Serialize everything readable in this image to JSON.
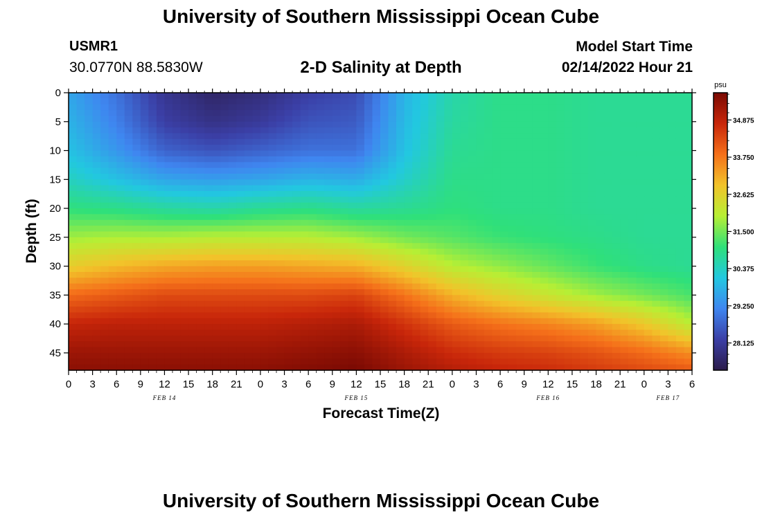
{
  "header": {
    "title": "University of Southern Mississippi Ocean Cube",
    "station_id": "USMR1",
    "station_coords": "30.0770N  88.5830W",
    "chart_title": "2-D Salinity at Depth",
    "start_label": "Model Start Time",
    "start_value": "02/14/2022 Hour 21"
  },
  "footer": {
    "title": "University of Southern Mississippi Ocean Cube"
  },
  "chart_data": {
    "type": "heatmap",
    "title": "2-D Salinity at Depth",
    "xlabel": "Forecast Time(Z)",
    "ylabel": "Depth (ft)",
    "x_ticks": [
      "0",
      "3",
      "6",
      "9",
      "12",
      "15",
      "18",
      "21",
      "0",
      "3",
      "6",
      "9",
      "12",
      "15",
      "18",
      "21",
      "0",
      "3",
      "6",
      "9",
      "12",
      "15",
      "18",
      "21",
      "0",
      "3",
      "6"
    ],
    "x_range_hours": [
      0,
      78
    ],
    "date_labels": [
      {
        "label": "FEB 14",
        "hour": 12
      },
      {
        "label": "FEB 15",
        "hour": 36
      },
      {
        "label": "FEB 16",
        "hour": 60
      },
      {
        "label": "FEB 17",
        "hour": 75
      }
    ],
    "y_ticks": [
      "0",
      "5",
      "10",
      "15",
      "20",
      "25",
      "30",
      "35",
      "40",
      "45"
    ],
    "y_range_ft": [
      0,
      48
    ],
    "y_reversed": true,
    "colorbar": {
      "unit": "psu",
      "range": [
        27.3,
        35.7
      ],
      "tick_labels": [
        "34.875",
        "33.750",
        "32.625",
        "31.500",
        "30.375",
        "29.250",
        "28.125"
      ],
      "colors": [
        "#2b1b4a",
        "#3b3fa6",
        "#3f86f0",
        "#22c8e0",
        "#2fe07a",
        "#b7ef34",
        "#f2c32a",
        "#f5701a",
        "#c8260a",
        "#7a0a03"
      ]
    },
    "description_grid": {
      "depth_ft": [
        0,
        5,
        10,
        15,
        20,
        25,
        30,
        35,
        40,
        45,
        48
      ],
      "time_hours": [
        0,
        6,
        12,
        18,
        24,
        30,
        36,
        42,
        48,
        54,
        60,
        66,
        72,
        78
      ],
      "salinity_psu": [
        [
          29.6,
          28.9,
          28.0,
          27.6,
          27.8,
          28.2,
          28.4,
          29.8,
          30.6,
          30.9,
          30.9,
          30.8,
          30.8,
          30.8
        ],
        [
          29.8,
          29.1,
          28.2,
          27.9,
          28.1,
          28.5,
          28.6,
          29.9,
          30.7,
          30.9,
          30.9,
          30.8,
          30.8,
          30.8
        ],
        [
          30.0,
          29.4,
          28.7,
          28.5,
          28.7,
          28.9,
          28.9,
          30.0,
          30.8,
          30.9,
          30.9,
          30.8,
          30.8,
          30.8
        ],
        [
          30.4,
          30.0,
          29.6,
          29.5,
          29.6,
          29.8,
          29.7,
          30.3,
          30.9,
          30.9,
          30.9,
          30.8,
          30.8,
          30.8
        ],
        [
          31.0,
          30.9,
          30.7,
          30.6,
          30.8,
          30.9,
          30.7,
          30.8,
          31.0,
          30.9,
          30.9,
          30.8,
          30.8,
          30.8
        ],
        [
          31.8,
          31.9,
          31.9,
          32.0,
          32.0,
          32.0,
          31.8,
          31.5,
          31.3,
          31.1,
          31.0,
          30.9,
          30.8,
          30.8
        ],
        [
          32.7,
          33.0,
          33.2,
          33.3,
          33.3,
          33.2,
          33.1,
          32.6,
          32.0,
          31.7,
          31.4,
          31.1,
          30.9,
          30.8
        ],
        [
          33.9,
          34.1,
          34.3,
          34.3,
          34.3,
          34.3,
          34.4,
          33.8,
          33.1,
          32.6,
          32.2,
          31.8,
          31.5,
          31.2
        ],
        [
          34.8,
          34.9,
          34.9,
          34.9,
          34.9,
          35.0,
          35.1,
          34.6,
          34.1,
          33.8,
          33.6,
          33.3,
          32.8,
          32.0
        ],
        [
          35.3,
          35.3,
          35.3,
          35.3,
          35.3,
          35.4,
          35.5,
          35.1,
          34.7,
          34.5,
          34.4,
          34.2,
          33.9,
          33.5
        ],
        [
          35.5,
          35.5,
          35.5,
          35.5,
          35.5,
          35.6,
          35.7,
          35.3,
          35.0,
          34.8,
          34.7,
          34.5,
          34.3,
          34.1
        ]
      ]
    }
  }
}
